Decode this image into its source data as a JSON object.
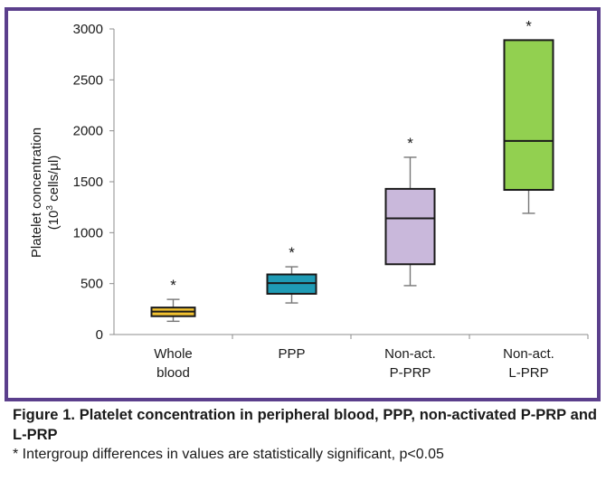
{
  "chart_data": {
    "type": "boxplot",
    "ylabel_line1": "Platelet concentration",
    "ylabel_line2_prefix": "(10",
    "ylabel_line2_sup": "3",
    "ylabel_line2_suffix": " cells/µl)",
    "ylim": [
      0,
      3000
    ],
    "yticks": [
      "0",
      "500",
      "1000",
      "1500",
      "2000",
      "2500",
      "3000"
    ],
    "ytick_values": [
      0,
      500,
      1000,
      1500,
      2000,
      2500,
      3000
    ],
    "grid": false,
    "categories": [
      {
        "lines": [
          "Whole",
          "blood"
        ],
        "min": 130,
        "q1": 180,
        "median": 225,
        "q3": 265,
        "max": 345,
        "color": "#f2c231",
        "significance": "*"
      },
      {
        "lines": [
          "PPP"
        ],
        "min": 310,
        "q1": 400,
        "median": 505,
        "q3": 590,
        "max": 665,
        "color": "#1f9bb5",
        "significance": "*"
      },
      {
        "lines": [
          "Non-act.",
          "P-PRP"
        ],
        "min": 480,
        "q1": 690,
        "median": 1140,
        "q3": 1430,
        "max": 1740,
        "color": "#c9b8db",
        "significance": "*"
      },
      {
        "lines": [
          "Non-act.",
          "L-PRP"
        ],
        "min": 1190,
        "q1": 1420,
        "median": 1900,
        "q3": 2890,
        "max": 2890,
        "color": "#92d050",
        "significance": "*"
      }
    ]
  },
  "caption": {
    "title": "Figure 1. Platelet concentration in peripheral blood, PPP, non-activated P-PRP and L-PRP",
    "note": "* Intergroup differences in values are statistically significant, p<0.05"
  },
  "colors": {
    "frame": "#5b3f8c",
    "axis": "#8c8c8c"
  }
}
